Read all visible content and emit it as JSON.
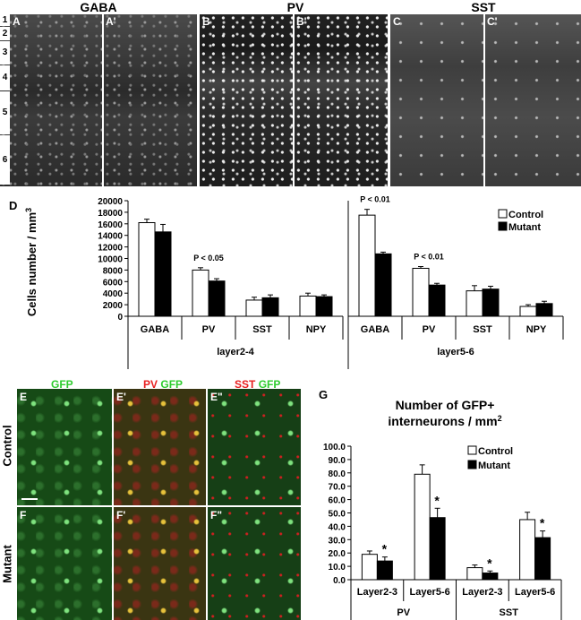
{
  "top_headers": {
    "gaba": "GABA",
    "pv": "PV",
    "sst": "SST"
  },
  "top_panels": [
    "A",
    "A'",
    "B",
    "B'",
    "C",
    "C'"
  ],
  "layers": [
    "1",
    "2",
    "3",
    "4",
    "5",
    "6"
  ],
  "panel_d": "D",
  "panel_g": "G",
  "bottom_headers": {
    "gfp": "GFP",
    "pv_merge_red": "PV",
    "pv_merge_green": "GFP",
    "sst_merge_red": "SST",
    "sst_merge_green": "GFP"
  },
  "bottom_panels": [
    "E",
    "E'",
    "E\"",
    "F",
    "F'",
    "F\""
  ],
  "row_labels": {
    "control": "Control",
    "mutant": "Mutant"
  },
  "colors": {
    "control": "#ffffff",
    "mutant": "#000000",
    "gfp": "#2ecc2e",
    "red": "#e82020"
  },
  "chart_data": [
    {
      "type": "bar",
      "ylabel": "Cells number / mm3",
      "ylim": [
        0,
        20000
      ],
      "yticks": [
        "0",
        "2000",
        "4000",
        "6000",
        "8000",
        "10000",
        "12000",
        "14000",
        "16000",
        "18000",
        "20000"
      ],
      "legend": [
        "Control",
        "Mutant"
      ],
      "legend_position": "top-right",
      "groups": [
        {
          "name": "layer2-4",
          "categories": [
            "GABA",
            "PV",
            "SST",
            "NPY"
          ],
          "series": [
            {
              "name": "Control",
              "values": [
                16200,
                8000,
                2800,
                3500
              ],
              "errors": [
                600,
                400,
                500,
                500
              ]
            },
            {
              "name": "Mutant",
              "values": [
                14600,
                6100,
                3200,
                3400
              ],
              "errors": [
                1300,
                400,
                500,
                300
              ]
            }
          ],
          "annotations": [
            {
              "category": "PV",
              "text": "P < 0.05"
            }
          ]
        },
        {
          "name": "layer5-6",
          "categories": [
            "GABA",
            "PV",
            "SST",
            "NPY"
          ],
          "series": [
            {
              "name": "Control",
              "values": [
                17500,
                8300,
                4400,
                1700
              ],
              "errors": [
                1000,
                300,
                900,
                300
              ]
            },
            {
              "name": "Mutant",
              "values": [
                10800,
                5400,
                4700,
                2200
              ],
              "errors": [
                300,
                300,
                500,
                400
              ]
            }
          ],
          "annotations": [
            {
              "category": "GABA",
              "text": "P < 0.01"
            },
            {
              "category": "PV",
              "text": "P < 0.01"
            }
          ]
        }
      ]
    },
    {
      "type": "bar",
      "title": "Number of GFP+ interneurons / mm2",
      "ylim": [
        0,
        100
      ],
      "yticks": [
        "0.0",
        "10.0",
        "20.0",
        "30.0",
        "40.0",
        "50.0",
        "60.0",
        "70.0",
        "80.0",
        "90.0",
        "100.0"
      ],
      "legend": [
        "Control",
        "Mutant"
      ],
      "legend_position": "top-right",
      "categories": [
        "Layer2-3",
        "Layer5-6",
        "Layer2-3",
        "Layer5-6"
      ],
      "groups": [
        "PV",
        "SST"
      ],
      "series": [
        {
          "name": "Control",
          "values": [
            19.0,
            79.0,
            9.0,
            45.0
          ],
          "errors": [
            2.5,
            7.0,
            2.0,
            5.5
          ]
        },
        {
          "name": "Mutant",
          "values": [
            14.0,
            46.5,
            5.0,
            31.5
          ],
          "errors": [
            3.0,
            7.0,
            1.5,
            5.0
          ]
        }
      ],
      "significance": [
        "*",
        "*",
        "*",
        "*"
      ]
    }
  ]
}
